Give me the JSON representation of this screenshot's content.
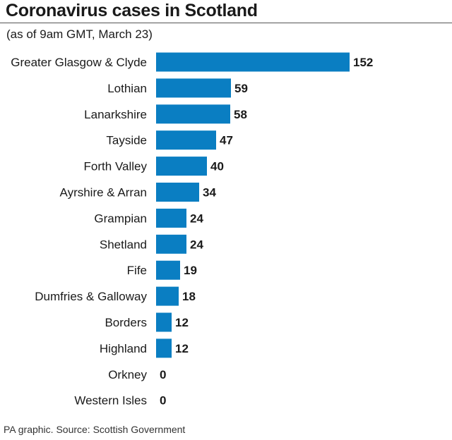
{
  "title": "Coronavirus cases in Scotland",
  "subtitle": "(as of 9am GMT, March 23)",
  "footer": "PA graphic. Source: Scottish Government",
  "colors": {
    "bar": "#0a7ec2",
    "text": "#1a1a1a",
    "rule": "#555555"
  },
  "chart_data": {
    "type": "bar",
    "orientation": "horizontal",
    "title": "Coronavirus cases in Scotland",
    "subtitle": "(as of 9am GMT, March 23)",
    "categories": [
      "Greater Glasgow & Clyde",
      "Lothian",
      "Lanarkshire",
      "Tayside",
      "Forth Valley",
      "Ayrshire & Arran",
      "Grampian",
      "Shetland",
      "Fife",
      "Dumfries & Galloway",
      "Borders",
      "Highland",
      "Orkney",
      "Western Isles"
    ],
    "values": [
      152,
      59,
      58,
      47,
      40,
      34,
      24,
      24,
      19,
      18,
      12,
      12,
      0,
      0
    ],
    "xlim": [
      0,
      152
    ],
    "grid": false,
    "legend": "none",
    "data_labels": true
  }
}
